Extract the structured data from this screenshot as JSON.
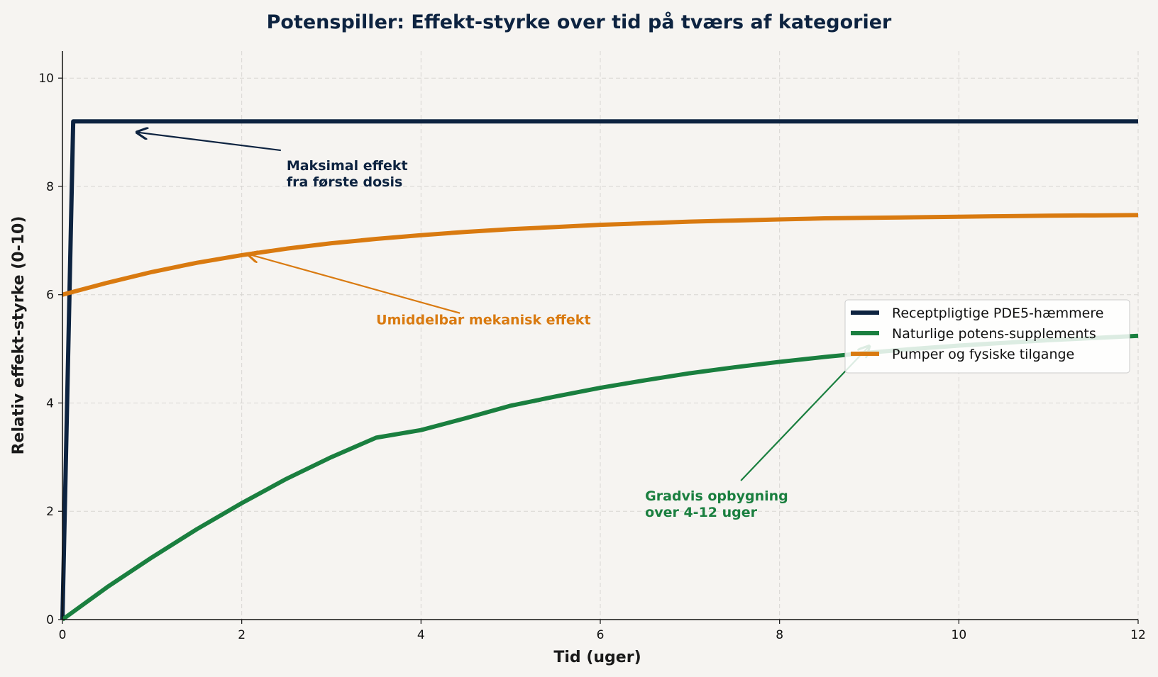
{
  "chart_data": {
    "type": "line",
    "title": "Potenspiller: Effekt-styrke over tid på tværs af kategorier",
    "xlabel": "Tid (uger)",
    "ylabel": "Relativ effekt-styrke (0-10)",
    "xlim": [
      0,
      12
    ],
    "ylim": [
      0,
      10.5
    ],
    "x_ticks": [
      "0",
      "2",
      "4",
      "6",
      "8",
      "10",
      "12"
    ],
    "y_ticks": [
      "0",
      "2",
      "4",
      "6",
      "8",
      "10"
    ],
    "grid": true,
    "legend_position": "center-right",
    "background": "#f6f4f1",
    "series": [
      {
        "name": "Receptpligtige PDE5-hæmmere",
        "color": "#0d2340",
        "x": [
          0,
          0.12,
          0.5,
          1,
          2,
          3,
          4,
          5,
          6,
          7,
          8,
          9,
          10,
          11,
          12
        ],
        "y": [
          0,
          9.2,
          9.2,
          9.2,
          9.2,
          9.2,
          9.2,
          9.2,
          9.2,
          9.2,
          9.2,
          9.2,
          9.2,
          9.2,
          9.2
        ]
      },
      {
        "name": "Naturlige potens-supplements",
        "color": "#1a7f3f",
        "x": [
          0,
          0.5,
          1,
          1.5,
          2,
          2.5,
          3,
          3.5,
          4,
          4.5,
          5,
          5.5,
          6,
          6.5,
          7,
          7.5,
          8,
          8.5,
          9,
          9.5,
          10,
          10.5,
          11,
          11.5,
          12
        ],
        "y": [
          0,
          0.6,
          1.15,
          1.67,
          2.15,
          2.6,
          3.0,
          3.36,
          3.5,
          3.72,
          3.95,
          4.12,
          4.28,
          4.42,
          4.55,
          4.66,
          4.76,
          4.85,
          4.93,
          5.0,
          5.06,
          5.11,
          5.16,
          5.2,
          5.24
        ]
      },
      {
        "name": "Pumper og fysiske tilgange",
        "color": "#d97a10",
        "x": [
          0,
          0.5,
          1,
          1.5,
          2,
          2.5,
          3,
          3.5,
          4,
          4.5,
          5,
          5.5,
          6,
          6.5,
          7,
          7.5,
          8,
          8.5,
          9,
          9.5,
          10,
          10.5,
          11,
          11.5,
          12
        ],
        "y": [
          6.0,
          6.22,
          6.42,
          6.59,
          6.73,
          6.85,
          6.95,
          7.03,
          7.1,
          7.16,
          7.21,
          7.25,
          7.29,
          7.32,
          7.35,
          7.37,
          7.39,
          7.41,
          7.42,
          7.43,
          7.44,
          7.45,
          7.46,
          7.465,
          7.47
        ]
      }
    ],
    "annotations": [
      {
        "lines": [
          "Maksimal effekt",
          "fra første dosis"
        ],
        "color": "#0d2340",
        "text_at": [
          2.5,
          8.3
        ],
        "arrow_to": [
          0.83,
          9.0
        ]
      },
      {
        "lines": [
          "Umiddelbar mekanisk effekt"
        ],
        "color": "#d97a10",
        "text_at": [
          3.5,
          5.45
        ],
        "arrow_to": [
          2.07,
          6.75
        ]
      },
      {
        "lines": [
          "Gradvis opbygning",
          "over 4-12 uger"
        ],
        "color": "#1a7f3f",
        "text_at": [
          6.5,
          2.2
        ],
        "arrow_to": [
          9.0,
          5.05
        ]
      }
    ]
  }
}
